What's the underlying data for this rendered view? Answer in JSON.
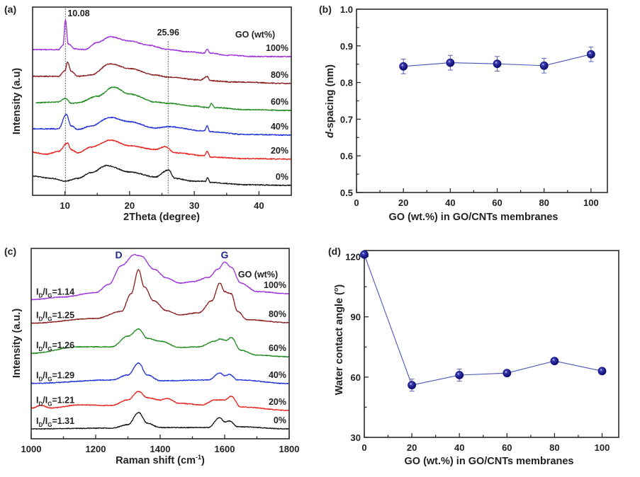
{
  "figure": {
    "panels": [
      "(a)",
      "(b)",
      "(c)",
      "(d)"
    ]
  },
  "chart_data": [
    {
      "id": "a",
      "type": "line",
      "panel_label": "(a)",
      "title": "",
      "xlabel": "2Theta (degree)",
      "ylabel": "Intensity (a.u)",
      "xlim": [
        5,
        45
      ],
      "ylim": [
        0,
        100
      ],
      "xticks": [
        10,
        20,
        30,
        40
      ],
      "xticks_minor": [
        15,
        25,
        35
      ],
      "yticks": [],
      "grid": false,
      "legend_title": "GO (wt%)",
      "annotations": [
        {
          "text": "10.08",
          "x": 10.08
        },
        {
          "text": "25.96",
          "x": 25.96
        }
      ],
      "series": [
        {
          "name": "100%",
          "color": "#9b30d9",
          "points": [
            [
              5,
              77.4
            ],
            [
              9,
              77.4
            ],
            [
              9.7,
              79.7
            ],
            [
              10.08,
              93.2
            ],
            [
              10.5,
              80.5
            ],
            [
              11.5,
              77.8
            ],
            [
              13,
              77.4
            ],
            [
              15,
              81.2
            ],
            [
              17,
              84.2
            ],
            [
              20,
              82
            ],
            [
              23,
              79.7
            ],
            [
              26,
              77.4
            ],
            [
              29,
              76.3
            ],
            [
              31.5,
              75.6
            ],
            [
              32,
              77.4
            ],
            [
              32.5,
              75.6
            ],
            [
              35,
              74.4
            ],
            [
              40,
              73.7
            ],
            [
              45,
              73.7
            ]
          ]
        },
        {
          "name": "80%",
          "color": "#8b1c1c",
          "points": [
            [
              5,
              63.2
            ],
            [
              9,
              63.2
            ],
            [
              10,
              66.2
            ],
            [
              10.4,
              70.7
            ],
            [
              11,
              65.8
            ],
            [
              12,
              63.2
            ],
            [
              14,
              63.9
            ],
            [
              17,
              69.9
            ],
            [
              20,
              67.3
            ],
            [
              24,
              63.9
            ],
            [
              26,
              62.8
            ],
            [
              31,
              61.3
            ],
            [
              32,
              63.2
            ],
            [
              32.5,
              60.9
            ],
            [
              36,
              60.2
            ],
            [
              45,
              59.4
            ]
          ]
        },
        {
          "name": "60%",
          "color": "#1f8a1f",
          "points": [
            [
              5.5,
              49.2
            ],
            [
              9,
              49.6
            ],
            [
              10,
              51.5
            ],
            [
              11,
              48.9
            ],
            [
              12,
              49.2
            ],
            [
              15,
              52.6
            ],
            [
              17.5,
              57.5
            ],
            [
              20,
              53.8
            ],
            [
              24,
              49.6
            ],
            [
              26,
              48.9
            ],
            [
              30,
              47.4
            ],
            [
              32.3,
              46.6
            ],
            [
              32.6,
              48.9
            ],
            [
              33.2,
              46.6
            ],
            [
              38,
              45.5
            ],
            [
              45,
              45.1
            ]
          ]
        },
        {
          "name": "40%",
          "color": "#1f2fd6",
          "points": [
            [
              5,
              35.3
            ],
            [
              9,
              35.3
            ],
            [
              10.2,
              42.9
            ],
            [
              11,
              36.8
            ],
            [
              12,
              35
            ],
            [
              14,
              36.8
            ],
            [
              17,
              41.4
            ],
            [
              20,
              39.1
            ],
            [
              24,
              35.7
            ],
            [
              26,
              36.5
            ],
            [
              31.5,
              34.2
            ],
            [
              32,
              36.8
            ],
            [
              32.4,
              33.8
            ],
            [
              38,
              32.3
            ],
            [
              45,
              32
            ]
          ]
        },
        {
          "name": "20%",
          "color": "#e8201c",
          "points": [
            [
              5,
              22.9
            ],
            [
              7,
              21.8
            ],
            [
              9,
              23.3
            ],
            [
              10.4,
              27.8
            ],
            [
              11,
              24.1
            ],
            [
              12,
              22.6
            ],
            [
              14,
              25.6
            ],
            [
              17,
              29.3
            ],
            [
              20,
              26.3
            ],
            [
              24,
              24.4
            ],
            [
              25.5,
              25.9
            ],
            [
              27,
              22.6
            ],
            [
              31.5,
              21.1
            ],
            [
              32,
              23.3
            ],
            [
              32.5,
              20.3
            ],
            [
              38,
              19.5
            ],
            [
              45,
              19.2
            ]
          ]
        },
        {
          "name": "0%",
          "color": "#111111",
          "points": [
            [
              5,
              10.2
            ],
            [
              8,
              9
            ],
            [
              10,
              7.5
            ],
            [
              12,
              9
            ],
            [
              14,
              12
            ],
            [
              16.5,
              15.8
            ],
            [
              20,
              12.4
            ],
            [
              24,
              9.8
            ],
            [
              26,
              13.5
            ],
            [
              27,
              9
            ],
            [
              30,
              7.5
            ],
            [
              31.8,
              7.5
            ],
            [
              32,
              9.4
            ],
            [
              32.5,
              6.8
            ],
            [
              38,
              5.6
            ],
            [
              45,
              5.3
            ]
          ]
        }
      ]
    },
    {
      "id": "b",
      "type": "scatter",
      "panel_label": "(b)",
      "title": "",
      "xlabel": "GO (wt.%) in GO/CNTs membranes",
      "ylabel_italic": "d",
      "ylabel_rest": "-spacing (nm)",
      "xlim": [
        0,
        107
      ],
      "ylim": [
        0.5,
        1.0
      ],
      "xticks": [
        0,
        20,
        40,
        60,
        80,
        100
      ],
      "xticks_minor": [
        10,
        30,
        50,
        70,
        90
      ],
      "yticks": [
        0.5,
        0.6,
        0.7,
        0.8,
        0.9,
        1.0
      ],
      "ytick_labels": [
        "0.5",
        "0.6",
        "0.7",
        "0.8",
        "0.9",
        "1.0"
      ],
      "yticks_minor": [
        0.55,
        0.65,
        0.75,
        0.85,
        0.95
      ],
      "grid": false,
      "marker_color": "#0d0d7a",
      "line_color": "#4a55b8",
      "x": [
        20,
        40,
        60,
        80,
        100
      ],
      "y": [
        0.844,
        0.854,
        0.851,
        0.846,
        0.877
      ],
      "yerr": [
        0.02,
        0.02,
        0.02,
        0.02,
        0.02
      ]
    },
    {
      "id": "c",
      "type": "line",
      "panel_label": "(c)",
      "title": "",
      "xlabel": "Raman shift (cm",
      "xlabel_sup": "-1",
      "xlabel_end": ")",
      "ylabel": "Intensity (a.u.)",
      "xlim": [
        1000,
        1800
      ],
      "ylim": [
        0,
        100
      ],
      "xticks": [
        1000,
        1200,
        1400,
        1600,
        1800
      ],
      "xticks_minor": [
        1100,
        1300,
        1500,
        1700
      ],
      "yticks": [],
      "grid": false,
      "legend_title": "GO (wt%)",
      "peak_labels": [
        {
          "text": "D",
          "x": 1320
        },
        {
          "text": "G",
          "x": 1600
        }
      ],
      "series": [
        {
          "name": "100%",
          "ratio": "1.14",
          "color": "#9b30d9",
          "points": [
            [
              1000,
              73.1
            ],
            [
              1100,
              74.5
            ],
            [
              1200,
              76.8
            ],
            [
              1240,
              81
            ],
            [
              1280,
              91
            ],
            [
              1320,
              96.7
            ],
            [
              1340,
              96
            ],
            [
              1380,
              89.2
            ],
            [
              1420,
              84.4
            ],
            [
              1460,
              81.8
            ],
            [
              1500,
              82.5
            ],
            [
              1550,
              84.8
            ],
            [
              1580,
              89.2
            ],
            [
              1600,
              92.9
            ],
            [
              1620,
              90
            ],
            [
              1650,
              81.8
            ],
            [
              1700,
              77.3
            ],
            [
              1800,
              76.2
            ]
          ]
        },
        {
          "name": "80%",
          "ratio": "1.25",
          "color": "#8b1c1c",
          "points": [
            [
              1000,
              60.7
            ],
            [
              1200,
              63.2
            ],
            [
              1280,
              66.9
            ],
            [
              1310,
              76.2
            ],
            [
              1333,
              88.8
            ],
            [
              1350,
              79.9
            ],
            [
              1380,
              72.5
            ],
            [
              1420,
              67.3
            ],
            [
              1460,
              65.1
            ],
            [
              1520,
              66.2
            ],
            [
              1560,
              72.5
            ],
            [
              1585,
              81.8
            ],
            [
              1600,
              77.3
            ],
            [
              1620,
              76.2
            ],
            [
              1640,
              66.9
            ],
            [
              1670,
              62.5
            ],
            [
              1800,
              61
            ]
          ]
        },
        {
          "name": "60%",
          "ratio": "1.26",
          "color": "#1f8a1f",
          "points": [
            [
              1000,
              44.9
            ],
            [
              1150,
              48.3
            ],
            [
              1250,
              48.3
            ],
            [
              1300,
              53.9
            ],
            [
              1333,
              57.6
            ],
            [
              1360,
              52.8
            ],
            [
              1400,
              51.3
            ],
            [
              1460,
              48
            ],
            [
              1520,
              48.3
            ],
            [
              1570,
              51.3
            ],
            [
              1585,
              52.4
            ],
            [
              1605,
              51.7
            ],
            [
              1620,
              53.2
            ],
            [
              1650,
              46.5
            ],
            [
              1700,
              43.9
            ],
            [
              1800,
              43.1
            ]
          ]
        },
        {
          "name": "40%",
          "ratio": "1.29",
          "color": "#1f2fd6",
          "points": [
            [
              1000,
              29.1
            ],
            [
              1250,
              30.9
            ],
            [
              1300,
              33.5
            ],
            [
              1333,
              39.8
            ],
            [
              1360,
              33.5
            ],
            [
              1400,
              30.5
            ],
            [
              1550,
              30.9
            ],
            [
              1585,
              34.6
            ],
            [
              1600,
              33.1
            ],
            [
              1615,
              33.8
            ],
            [
              1640,
              30.9
            ],
            [
              1800,
              29
            ]
          ]
        },
        {
          "name": "20%",
          "ratio": "1.21",
          "color": "#e8201c",
          "points": [
            [
              1000,
              16.1
            ],
            [
              1030,
              17.5
            ],
            [
              1060,
              16.2
            ],
            [
              1150,
              17.8
            ],
            [
              1250,
              17.5
            ],
            [
              1300,
              20.4
            ],
            [
              1333,
              24.9
            ],
            [
              1360,
              21.6
            ],
            [
              1400,
              20.4
            ],
            [
              1420,
              21.2
            ],
            [
              1460,
              18.6
            ],
            [
              1530,
              17.8
            ],
            [
              1570,
              20.4
            ],
            [
              1600,
              20.4
            ],
            [
              1620,
              22.3
            ],
            [
              1650,
              16.7
            ],
            [
              1800,
              14.9
            ]
          ]
        },
        {
          "name": "0%",
          "ratio": "1.31",
          "color": "#111111",
          "points": [
            [
              1000,
              5.2
            ],
            [
              1250,
              5.6
            ],
            [
              1300,
              7.4
            ],
            [
              1333,
              13.8
            ],
            [
              1360,
              8.2
            ],
            [
              1400,
              5.9
            ],
            [
              1550,
              5.9
            ],
            [
              1585,
              11.2
            ],
            [
              1600,
              8.9
            ],
            [
              1615,
              9.3
            ],
            [
              1640,
              6.3
            ],
            [
              1800,
              5.2
            ]
          ]
        }
      ]
    },
    {
      "id": "d",
      "type": "scatter",
      "panel_label": "(d)",
      "title": "",
      "xlabel": "GO (wt.%) in GO/CNTs membranes",
      "ylabel": "Water contact angle (",
      "ylabel_sup": "o",
      "ylabel_end": ")",
      "xlim": [
        0,
        107
      ],
      "ylim": [
        30,
        123
      ],
      "xticks": [
        0,
        20,
        40,
        60,
        80,
        100
      ],
      "xticks_minor": [
        10,
        30,
        50,
        70,
        90
      ],
      "yticks": [
        30,
        60,
        90,
        120
      ],
      "ytick_labels": [
        "30",
        "60",
        "90",
        "120"
      ],
      "yticks_minor": [
        45,
        75,
        105
      ],
      "grid": false,
      "marker_color": "#0d0d7a",
      "line_color": "#4a55b8",
      "x": [
        0,
        20,
        40,
        60,
        80,
        100
      ],
      "y": [
        121,
        56,
        61,
        62,
        68,
        63
      ],
      "yerr": [
        1.5,
        3,
        3,
        1.5,
        1.5,
        1.5
      ]
    }
  ]
}
